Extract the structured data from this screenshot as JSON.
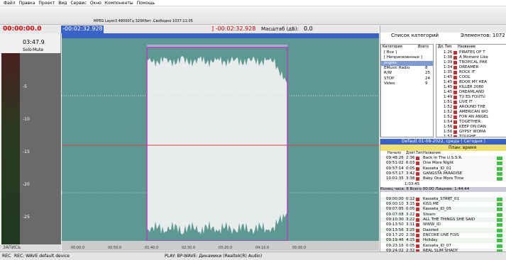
{
  "menu": [
    "Файл",
    "Правка",
    "Проект",
    "Вид",
    "Сервис",
    "Окно",
    "Компоненты",
    "Помощь"
  ],
  "timer": {
    "position": "00:00:00.0",
    "remaining": "-00:02:32.928",
    "selection": "] -00:02:32.928",
    "scale_label": "Масштаб (дБ):",
    "scale_value": "0.0",
    "length": "03:47.9",
    "format": "MPEG Layer3 48000Гц 320Кбит ...",
    "free": "Свободно 1037:11:05"
  },
  "meter": {
    "solo": "Solo",
    "mute": "Mute",
    "scale": [
      "-5",
      "-10",
      "-15",
      "-20",
      "-25"
    ],
    "record": "ЗАПИСЬ"
  },
  "timeline": [
    "00:00.0",
    "00:50.0",
    "01:40.0",
    "02:30.0",
    "03:20.0",
    "04:10.0",
    "05:00.0"
  ],
  "categories": {
    "title": "Список категорий",
    "headers": [
      "Категория",
      "Всего"
    ],
    "rows": [
      [
        "[ Все ]",
        null
      ],
      [
        "[ Неприсвоенные ]",
        null
      ],
      [
        "Jingles",
        null
      ],
      [
        "EMusic Radio",
        "8"
      ],
      [
        "R/W",
        "25"
      ],
      [
        "STOP",
        "24"
      ],
      [
        "Video",
        "9"
      ]
    ]
  },
  "elements": {
    "title": "Элементов: 1072",
    "headers": [
      "Дл.",
      "Тип",
      "Название"
    ],
    "rows": [
      [
        "1:26",
        "PIRATES OF T"
      ],
      [
        "1:38",
        "A Moment Like"
      ],
      [
        "1:39",
        "TROPICAL PAR"
      ],
      [
        "1:34",
        "DREAMER"
      ],
      [
        "1:35",
        "ROCK IT"
      ],
      [
        "1:45",
        "COOL"
      ],
      [
        "1:45",
        "BOOK MY HEA"
      ],
      [
        "1:45",
        "KILLER 2080"
      ],
      [
        "1:45",
        "DREAMLAND"
      ],
      [
        "1:49",
        "TU ES FOUTU"
      ],
      [
        "1:51",
        "LIVE IT"
      ],
      [
        "1:52",
        "AROUND THE"
      ],
      [
        "1:52",
        "AMERICAN WO"
      ],
      [
        "1:52",
        "FOR AN ANGEL"
      ],
      [
        "1:54",
        "TOGETHER"
      ],
      [
        "1:56",
        "KEEP ON DAN"
      ],
      [
        "1:56",
        "GYPSY WOMA"
      ],
      [
        "1:57",
        "TOUGHE"
      ]
    ]
  },
  "playlist": {
    "title": "Default 01-08-2022, среда ( Сегодня )",
    "mode": "План: время",
    "headers": [
      "Начало",
      "Длит.",
      "Тип",
      "Название"
    ],
    "rows_before": [
      [
        "09:48:26",
        "2:36",
        "Back In The U.S.S.R."
      ],
      [
        "09:51:02",
        "6:03",
        "One More Night"
      ],
      [
        "09:57:14",
        "0:05",
        "Kasseta_ID_01"
      ],
      [
        "09:57:17",
        "3:42",
        "GANGSTA PARADISE"
      ],
      [
        "10:01:35",
        "3:38",
        "Baby One More Time"
      ]
    ],
    "total": "1:03:45",
    "hour_end": "Конец часа: 8 Всего 00:00 Лишнее: 1:44:44",
    "rows_after": [
      [
        "09:00:00",
        "0:12",
        "Kasseta_START_01"
      ],
      [
        "09:00:10",
        "3:15",
        "KISS ME"
      ],
      [
        "09:07:05",
        "0:05",
        "Kasseta_ID_05"
      ],
      [
        "09:07:08",
        "3:22",
        "Steam"
      ],
      [
        "09:10:30",
        "3:22",
        "ALL THE THINGS SHE SAID"
      ],
      [
        "09:13:50",
        "3:11",
        "WWW_ID"
      ],
      [
        "09:13:56",
        "3:25",
        "Dazzled"
      ],
      [
        "09:17:20",
        "2:38",
        "ENCORE UNE FOIS"
      ],
      [
        "09:19:46",
        "4:15",
        "Holiday"
      ],
      [
        "09:23:16",
        "0:05",
        "Kasseta_ID_07"
      ],
      [
        "09:24:02",
        "2:32",
        "REAL SLIM SHADY"
      ],
      [
        "09:26:31",
        "2:47",
        "Hush Hush"
      ],
      [
        "09:30:17",
        "4:11",
        "From Sarah With Love"
      ]
    ]
  },
  "status": {
    "rec": "REC",
    "rec_device": "REC: WAVE default device",
    "play_device": "PLAY: BP-WAVE: Динамики (Realtek(R) Audio)"
  }
}
